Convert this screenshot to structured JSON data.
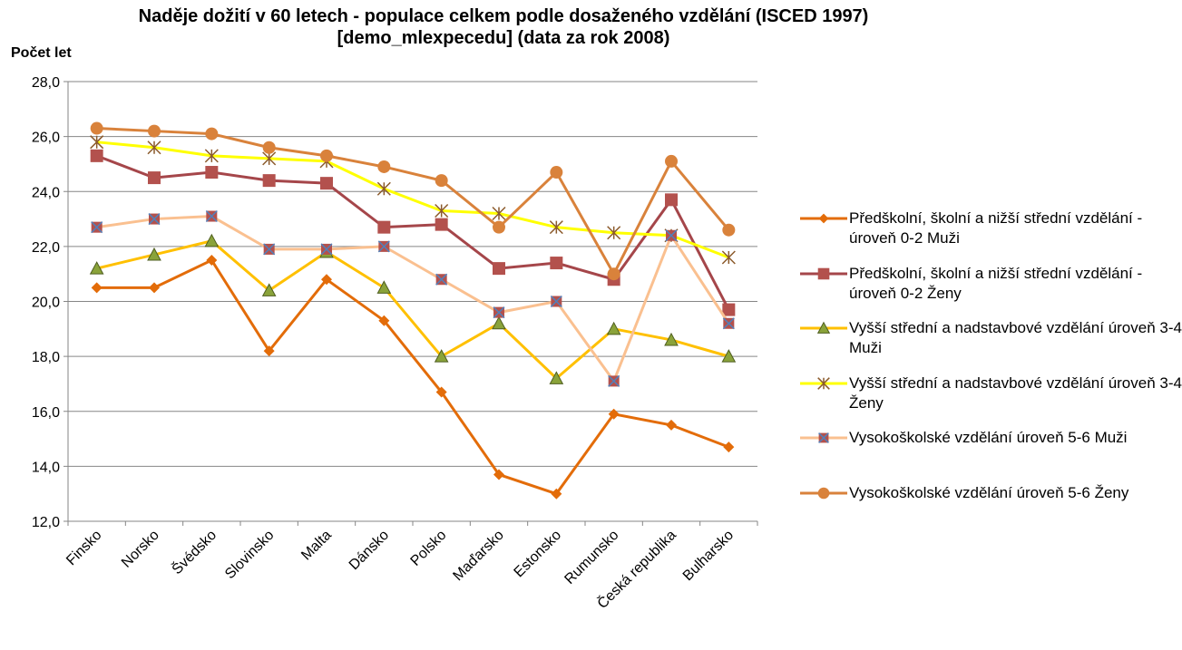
{
  "chart_data": {
    "type": "line",
    "title": "Naděje dožití v 60 letech  - populace celkem podle dosaženého vzdělání (ISCED 1997) [demo_mlexpecedu]  (data za rok 2008)",
    "y_axis_label": "Počet let",
    "categories": [
      "Finsko",
      "Norsko",
      "Švédsko",
      "Slovinsko",
      "Malta",
      "Dánsko",
      "Polsko",
      "Maďarsko",
      "Estonsko",
      "Rumunsko",
      "Česká republika",
      "Bulharsko"
    ],
    "ylim": [
      12,
      28
    ],
    "yticks": [
      {
        "value": 12,
        "label": "12,0"
      },
      {
        "value": 14,
        "label": "14,0"
      },
      {
        "value": 16,
        "label": "16,0"
      },
      {
        "value": 18,
        "label": "18,0"
      },
      {
        "value": 20,
        "label": "20,0"
      },
      {
        "value": 22,
        "label": "22,0"
      },
      {
        "value": 24,
        "label": "24,0"
      },
      {
        "value": 26,
        "label": "26,0"
      },
      {
        "value": 28,
        "label": "28,0"
      }
    ],
    "grid": true,
    "legend": "right",
    "series": [
      {
        "name": "Předškolní, školní a nižší střední vzdělání - úroveň 0-2 Muži",
        "color": "#e36c09",
        "marker": "diamond",
        "marker_color": "#e36c09",
        "values": [
          20.5,
          20.5,
          21.5,
          18.2,
          20.8,
          19.3,
          16.7,
          13.7,
          13.0,
          15.9,
          15.5,
          14.7
        ]
      },
      {
        "name": "Předškolní, školní a nižší střední vzdělání - úroveň 0-2 Ženy",
        "color": "#a5464a",
        "marker": "square",
        "marker_color": "#b3514d",
        "values": [
          25.3,
          24.5,
          24.7,
          24.4,
          24.3,
          22.7,
          22.8,
          21.2,
          21.4,
          20.8,
          23.7,
          19.7
        ]
      },
      {
        "name": "Vyšší střední a nadstavbové vzdělání úroveň 3-4 Muži",
        "color": "#ffc000",
        "marker": "triangle",
        "marker_color": "#8aa33a",
        "values": [
          21.2,
          21.7,
          22.2,
          20.4,
          21.8,
          20.5,
          18.0,
          19.2,
          17.2,
          19.0,
          18.6,
          18.0
        ]
      },
      {
        "name": "Vyšší střední a nadstavbové vzdělání úroveň 3-4 Ženy",
        "color": "#ffff00",
        "marker": "star",
        "marker_color": "#8b5a2b",
        "values": [
          25.8,
          25.6,
          25.3,
          25.2,
          25.1,
          24.1,
          23.3,
          23.2,
          22.7,
          22.5,
          22.4,
          21.6
        ]
      },
      {
        "name": "Vysokoškolské vzdělání úroveň 5-6 Muži",
        "color": "#fac090",
        "marker": "square-x",
        "marker_color": "#b3514d",
        "values": [
          22.7,
          23.0,
          23.1,
          21.9,
          21.9,
          22.0,
          20.8,
          19.6,
          20.0,
          17.1,
          22.4,
          19.2
        ]
      },
      {
        "name": "Vysokoškolské vzdělání úroveň 5-6 Ženy",
        "color": "#d9823b",
        "marker": "circle",
        "marker_color": "#d9823b",
        "values": [
          26.3,
          26.2,
          26.1,
          25.6,
          25.3,
          24.9,
          24.4,
          22.7,
          24.7,
          21.0,
          25.1,
          22.6
        ]
      }
    ]
  }
}
